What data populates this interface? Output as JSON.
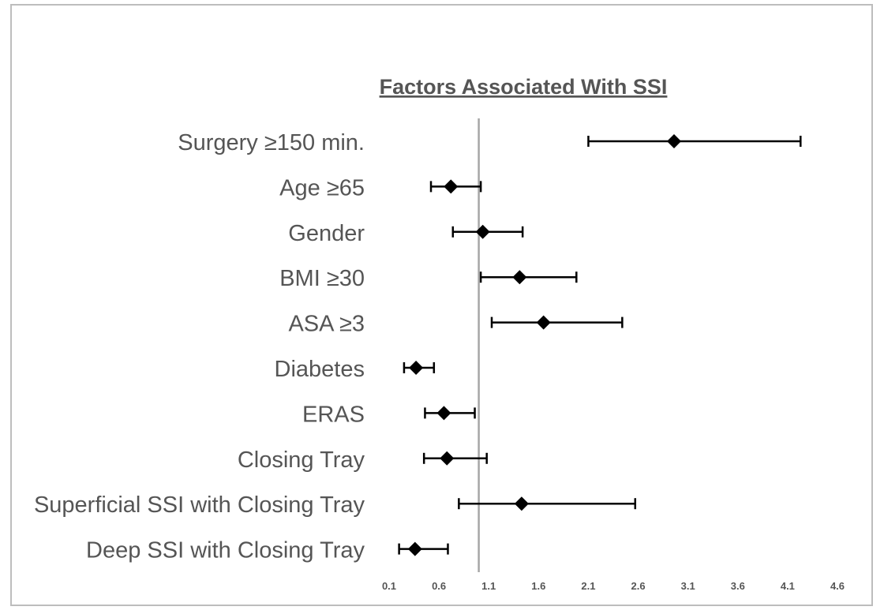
{
  "chart_data": {
    "type": "forest",
    "title": "Factors Associated With SSI",
    "xlabel": "",
    "ylabel": "",
    "reference_line": 1.0,
    "x_ticks": [
      "0.1",
      "0.6",
      "1.1",
      "1.6",
      "2.1",
      "2.6",
      "3.1",
      "3.6",
      "4.1",
      "4.6"
    ],
    "xlim": [
      0.1,
      4.6
    ],
    "rows": [
      {
        "label": "Surgery ≥150 min.",
        "estimate": 2.96,
        "low": 2.1,
        "high": 4.23
      },
      {
        "label": "Age ≥65",
        "estimate": 0.72,
        "low": 0.52,
        "high": 1.02
      },
      {
        "label": "Gender",
        "estimate": 1.04,
        "low": 0.74,
        "high": 1.44
      },
      {
        "label": "BMI ≥30",
        "estimate": 1.41,
        "low": 1.02,
        "high": 1.98
      },
      {
        "label": "ASA ≥3",
        "estimate": 1.65,
        "low": 1.13,
        "high": 2.44
      },
      {
        "label": "Diabetes",
        "estimate": 0.37,
        "low": 0.25,
        "high": 0.55
      },
      {
        "label": "ERAS",
        "estimate": 0.65,
        "low": 0.46,
        "high": 0.96
      },
      {
        "label": "Closing Tray",
        "estimate": 0.68,
        "low": 0.45,
        "high": 1.08
      },
      {
        "label": "Superficial SSI with Closing Tray",
        "estimate": 1.43,
        "low": 0.8,
        "high": 2.57
      },
      {
        "label": "Deep SSI with Closing Tray",
        "estimate": 0.36,
        "low": 0.2,
        "high": 0.69
      }
    ],
    "grid": false,
    "legend": "none",
    "colors": {
      "marker": "#000000",
      "reference_line": "#a6a6a6",
      "text": "#555555",
      "border": "#bdbdbd"
    }
  }
}
